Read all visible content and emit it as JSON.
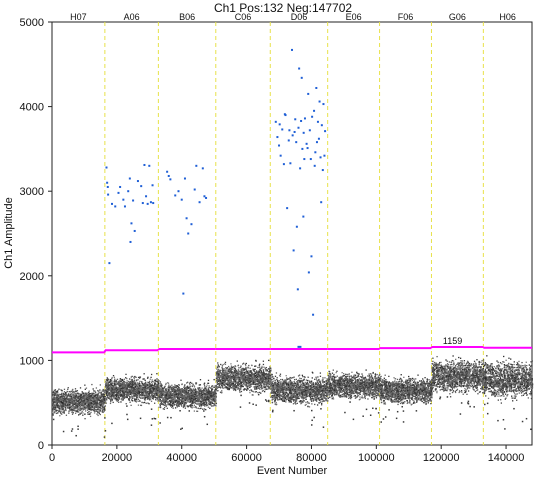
{
  "chart_data": {
    "type": "scatter",
    "title": "Ch1 Pos:132 Neg:147702",
    "xlabel": "Event Number",
    "ylabel": "Ch1 Amplitude",
    "xlim": [
      0,
      148000
    ],
    "ylim": [
      0,
      5000
    ],
    "x_ticks": [
      0,
      20000,
      40000,
      60000,
      80000,
      100000,
      120000,
      140000
    ],
    "x_tick_labels": [
      "0",
      "20000",
      "40000",
      "60000",
      "80000",
      "100000",
      "120000",
      "140000"
    ],
    "y_ticks": [
      0,
      1000,
      2000,
      3000,
      4000,
      5000
    ],
    "y_tick_labels": [
      "0",
      "1000",
      "2000",
      "3000",
      "4000",
      "5000"
    ],
    "grid": "vertical dotted",
    "well_labels": [
      "H07",
      "A06",
      "B06",
      "C06",
      "D06",
      "E06",
      "F06",
      "G06",
      "H06"
    ],
    "well_boundaries": [
      0,
      16300,
      32800,
      50500,
      67300,
      85000,
      101000,
      117000,
      133000,
      148000
    ],
    "negative_bands": [
      {
        "well": "H07",
        "x_start": 0,
        "x_end": 16300,
        "center": 520,
        "spread": 110
      },
      {
        "well": "A06",
        "x_start": 16300,
        "x_end": 32800,
        "center": 660,
        "spread": 110
      },
      {
        "well": "B06",
        "x_start": 32800,
        "x_end": 50500,
        "center": 590,
        "spread": 110
      },
      {
        "well": "C06",
        "x_start": 50500,
        "x_end": 67300,
        "center": 800,
        "spread": 120
      },
      {
        "well": "D06",
        "x_start": 67300,
        "x_end": 85000,
        "center": 660,
        "spread": 120
      },
      {
        "well": "E06",
        "x_start": 85000,
        "x_end": 101000,
        "center": 710,
        "spread": 110
      },
      {
        "well": "F06",
        "x_start": 101000,
        "x_end": 117000,
        "center": 650,
        "spread": 110
      },
      {
        "well": "G06",
        "x_start": 117000,
        "x_end": 133000,
        "center": 820,
        "spread": 140
      },
      {
        "well": "H06",
        "x_start": 133000,
        "x_end": 148000,
        "center": 780,
        "spread": 160
      }
    ],
    "threshold": {
      "label": "1159",
      "color": "#ff00ff",
      "segments": [
        {
          "x": [
            0,
            16300
          ],
          "y": 1095
        },
        {
          "x": [
            16300,
            32800
          ],
          "y": 1120
        },
        {
          "x": [
            32800,
            50500
          ],
          "y": 1135
        },
        {
          "x": [
            50500,
            67300
          ],
          "y": 1135
        },
        {
          "x": [
            67300,
            85000
          ],
          "y": 1135
        },
        {
          "x": [
            85000,
            101000
          ],
          "y": 1135
        },
        {
          "x": [
            101000,
            117000
          ],
          "y": 1145
        },
        {
          "x": [
            117000,
            133000
          ],
          "y": 1159
        },
        {
          "x": [
            133000,
            148000
          ],
          "y": 1150
        }
      ]
    },
    "positive_points": [
      [
        16800,
        3280
      ],
      [
        17000,
        3100
      ],
      [
        17200,
        3050
      ],
      [
        17300,
        2960
      ],
      [
        17700,
        2150
      ],
      [
        18500,
        2850
      ],
      [
        19500,
        2820
      ],
      [
        20500,
        2980
      ],
      [
        21000,
        3050
      ],
      [
        22000,
        2900
      ],
      [
        22500,
        2820
      ],
      [
        23500,
        3000
      ],
      [
        24000,
        3150
      ],
      [
        24200,
        2400
      ],
      [
        24500,
        2620
      ],
      [
        25000,
        2890
      ],
      [
        25500,
        2530
      ],
      [
        26500,
        3120
      ],
      [
        27500,
        3060
      ],
      [
        28000,
        2860
      ],
      [
        28500,
        3310
      ],
      [
        29000,
        2940
      ],
      [
        29500,
        2850
      ],
      [
        30000,
        3300
      ],
      [
        30500,
        2870
      ],
      [
        31000,
        3070
      ],
      [
        31200,
        2860
      ],
      [
        35500,
        3230
      ],
      [
        36000,
        3180
      ],
      [
        36500,
        3140
      ],
      [
        38000,
        2950
      ],
      [
        39000,
        3000
      ],
      [
        40000,
        2900
      ],
      [
        40500,
        1790
      ],
      [
        41000,
        3150
      ],
      [
        41500,
        2680
      ],
      [
        42000,
        2500
      ],
      [
        43000,
        2610
      ],
      [
        44000,
        3020
      ],
      [
        44500,
        3300
      ],
      [
        45500,
        2870
      ],
      [
        46500,
        3270
      ],
      [
        47000,
        2940
      ],
      [
        47500,
        2920
      ],
      [
        69000,
        3820
      ],
      [
        69500,
        3640
      ],
      [
        70000,
        3540
      ],
      [
        70500,
        3420
      ],
      [
        71000,
        3730
      ],
      [
        71500,
        3320
      ],
      [
        72000,
        3900
      ],
      [
        72500,
        2800
      ],
      [
        73000,
        3600
      ],
      [
        73500,
        3330
      ],
      [
        74000,
        4670
      ],
      [
        74500,
        2300
      ],
      [
        74800,
        3700
      ],
      [
        75000,
        3850
      ],
      [
        75500,
        2580
      ],
      [
        75800,
        1840
      ],
      [
        76000,
        3750
      ],
      [
        76200,
        4450
      ],
      [
        76500,
        3270
      ],
      [
        77000,
        4340
      ],
      [
        77200,
        3500
      ],
      [
        77500,
        2700
      ],
      [
        77800,
        3380
      ],
      [
        78000,
        3860
      ],
      [
        78500,
        3560
      ],
      [
        79000,
        4150
      ],
      [
        79200,
        2040
      ],
      [
        79500,
        3720
      ],
      [
        79800,
        3380
      ],
      [
        80000,
        2230
      ],
      [
        80500,
        1540
      ],
      [
        80800,
        3950
      ],
      [
        81000,
        3300
      ],
      [
        81500,
        4220
      ],
      [
        81700,
        3580
      ],
      [
        82000,
        3820
      ],
      [
        82500,
        4060
      ],
      [
        82800,
        3400
      ],
      [
        83000,
        2870
      ],
      [
        83200,
        3780
      ],
      [
        83500,
        3250
      ],
      [
        83700,
        4030
      ],
      [
        84000,
        3420
      ],
      [
        76000,
        1160
      ],
      [
        76600,
        1160
      ],
      [
        70200,
        3790
      ],
      [
        71800,
        3910
      ],
      [
        73200,
        3720
      ],
      [
        74200,
        3660
      ],
      [
        75300,
        3580
      ],
      [
        76800,
        3830
      ],
      [
        77600,
        3690
      ],
      [
        78800,
        3510
      ],
      [
        80200,
        3880
      ],
      [
        81200,
        3460
      ],
      [
        82300,
        3620
      ],
      [
        84200,
        3710
      ]
    ]
  },
  "colors": {
    "negative_droplets": "#3a3a3a",
    "positive_droplets": "#1f5fd6",
    "threshold": "#ff00ff",
    "well_divider": "#e8e24a"
  }
}
